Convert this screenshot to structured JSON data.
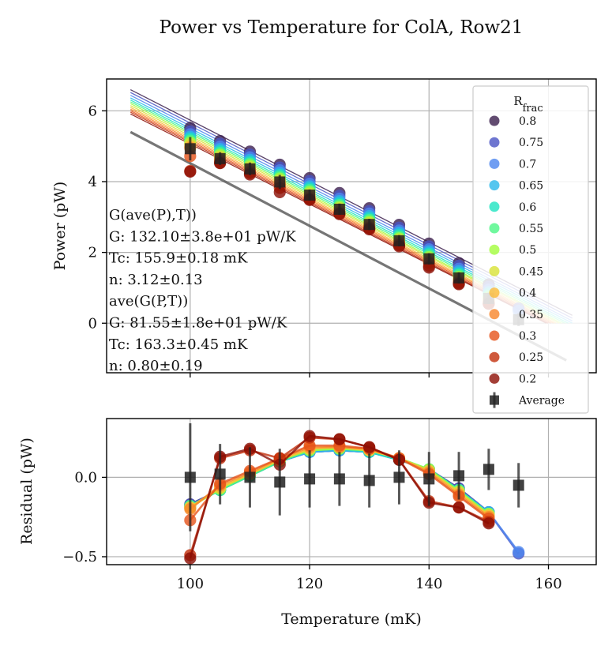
{
  "title": "Power vs Temperature for ColA, Row21",
  "chart_data": [
    {
      "type": "scatter",
      "panel": "top",
      "xlabel": "",
      "ylabel": "Power (pW)",
      "xlim": [
        86,
        168
      ],
      "ylim": [
        -1.4,
        6.9
      ],
      "yticks": [
        0,
        2,
        4,
        6
      ],
      "grid": true,
      "x": [
        100,
        105,
        110,
        115,
        120,
        125,
        130,
        135,
        140,
        145,
        150,
        155
      ],
      "legend": {
        "title": "R_frac",
        "placement": "top-right",
        "entries": [
          "0.8",
          "0.75",
          "0.7",
          "0.65",
          "0.6",
          "0.55",
          "0.5",
          "0.45",
          "0.4",
          "0.35",
          "0.3",
          "0.25",
          "0.2",
          "Average"
        ]
      },
      "series": [
        {
          "name": "0.8",
          "color": "#3b1f4e",
          "values": [
            5.52,
            5.15,
            4.85,
            4.48,
            4.1,
            3.68,
            3.25,
            2.78,
            2.25,
            1.7,
            1.1,
            null
          ]
        },
        {
          "name": "0.75",
          "color": "#4a54c4",
          "values": [
            5.42,
            5.07,
            4.77,
            4.4,
            4.02,
            3.6,
            3.17,
            2.7,
            2.17,
            1.62,
            1.03,
            0.42
          ]
        },
        {
          "name": "0.7",
          "color": "#4c86ef",
          "values": [
            5.34,
            4.99,
            4.69,
            4.32,
            3.94,
            3.52,
            3.1,
            2.62,
            2.09,
            1.54,
            0.95,
            0.35
          ]
        },
        {
          "name": "0.65",
          "color": "#2ab8eb",
          "values": [
            5.27,
            4.92,
            4.62,
            4.25,
            3.87,
            3.45,
            3.03,
            2.56,
            2.03,
            1.47,
            0.88,
            null
          ]
        },
        {
          "name": "0.6",
          "color": "#1ee3c0",
          "values": [
            5.22,
            4.86,
            4.56,
            4.19,
            3.81,
            3.39,
            2.97,
            2.5,
            1.97,
            1.41,
            0.82,
            null
          ]
        },
        {
          "name": "0.55",
          "color": "#4cf686",
          "values": [
            5.16,
            4.81,
            4.51,
            4.14,
            3.76,
            3.34,
            2.92,
            2.45,
            1.92,
            1.36,
            0.77,
            null
          ]
        },
        {
          "name": "0.5",
          "color": "#a3fc3c",
          "values": [
            5.11,
            4.76,
            4.46,
            4.09,
            3.71,
            3.29,
            2.87,
            2.4,
            1.87,
            1.31,
            0.72,
            null
          ]
        },
        {
          "name": "0.45",
          "color": "#d8e235",
          "values": [
            5.06,
            4.71,
            4.41,
            4.04,
            3.66,
            3.25,
            2.83,
            2.36,
            1.83,
            1.27,
            0.68,
            null
          ]
        },
        {
          "name": "0.4",
          "color": "#fbb938",
          "values": [
            5.0,
            4.66,
            4.36,
            3.99,
            3.61,
            3.2,
            2.78,
            2.31,
            1.78,
            1.23,
            0.64,
            null
          ]
        },
        {
          "name": "0.35",
          "color": "#f8862a",
          "values": [
            4.95,
            4.61,
            4.32,
            3.95,
            3.57,
            3.16,
            2.74,
            2.27,
            1.74,
            1.19,
            0.6,
            null
          ]
        },
        {
          "name": "0.3",
          "color": "#e6531a",
          "values": [
            4.72,
            4.57,
            4.28,
            3.9,
            3.52,
            3.12,
            2.7,
            2.23,
            1.7,
            1.15,
            0.56,
            null
          ]
        },
        {
          "name": "0.25",
          "color": "#c32f0b",
          "values": [
            4.3,
            4.53,
            4.24,
            3.82,
            3.5,
            3.1,
            2.68,
            2.2,
            1.62,
            1.12,
            0.55,
            null
          ]
        },
        {
          "name": "0.2",
          "color": "#8c0e04",
          "values": [
            4.28,
            4.52,
            4.2,
            3.7,
            3.48,
            3.08,
            2.65,
            2.17,
            1.57,
            1.1,
            0.55,
            null
          ]
        },
        {
          "name": "Average",
          "color": "#222222",
          "marker": "square",
          "values": [
            4.93,
            4.65,
            4.36,
            3.99,
            3.62,
            3.22,
            2.79,
            2.33,
            1.82,
            1.28,
            0.7,
            0.1
          ],
          "errors": [
            0.33,
            0.18,
            0.18,
            0.2,
            0.16,
            0.16,
            0.16,
            0.16,
            0.16,
            0.16,
            0.16,
            0.18
          ]
        }
      ],
      "annotations": [
        "G(ave(P),T))",
        "G: 132.10±3.8e+01 pW/K",
        "Tc:  155.9±0.18 mK",
        "n:  3.12±0.13",
        "ave(G(P,T))",
        "G: 81.55±1.8e+01 pW/K",
        "Tc:  163.3±0.45 mK",
        "n:  0.80±0.19"
      ]
    },
    {
      "type": "scatter",
      "panel": "bottom",
      "xlabel": "Temperature (mK)",
      "ylabel": "Residual (pW)",
      "xlim": [
        86,
        168
      ],
      "ylim": [
        -0.55,
        0.37
      ],
      "xticks": [
        100,
        120,
        140,
        160
      ],
      "yticks": [
        -0.5,
        0.0
      ],
      "ytick_labels": [
        "−0.5",
        "0.0"
      ],
      "xtick_labels": [
        "100",
        "120",
        "140",
        "160"
      ],
      "grid": true,
      "x": [
        100,
        105,
        110,
        115,
        120,
        125,
        130,
        135,
        140,
        145,
        150,
        155
      ],
      "series": [
        {
          "name": "0.8",
          "color": "#3b1f4e",
          "values": [
            -0.17,
            -0.08,
            0.01,
            0.1,
            0.16,
            0.17,
            0.16,
            0.11,
            0.05,
            -0.07,
            -0.22,
            null
          ]
        },
        {
          "name": "0.75",
          "color": "#4a54c4",
          "values": [
            -0.17,
            -0.08,
            0.01,
            0.1,
            0.16,
            0.17,
            0.16,
            0.11,
            0.05,
            -0.07,
            -0.22,
            -0.48
          ]
        },
        {
          "name": "0.7",
          "color": "#4c86ef",
          "values": [
            -0.18,
            -0.08,
            0.01,
            0.1,
            0.16,
            0.17,
            0.16,
            0.11,
            0.05,
            -0.08,
            -0.22,
            -0.47
          ]
        },
        {
          "name": "0.65",
          "color": "#2ab8eb",
          "values": [
            -0.18,
            -0.08,
            0.01,
            0.1,
            0.16,
            0.17,
            0.16,
            0.11,
            0.05,
            -0.08,
            -0.22,
            null
          ]
        },
        {
          "name": "0.6",
          "color": "#1ee3c0",
          "values": [
            -0.18,
            -0.08,
            0.01,
            0.1,
            0.17,
            0.18,
            0.16,
            0.11,
            0.05,
            -0.08,
            -0.23,
            null
          ]
        },
        {
          "name": "0.55",
          "color": "#4cf686",
          "values": [
            -0.18,
            -0.08,
            0.01,
            0.1,
            0.17,
            0.18,
            0.17,
            0.12,
            0.05,
            -0.08,
            -0.23,
            null
          ]
        },
        {
          "name": "0.5",
          "color": "#a3fc3c",
          "values": [
            -0.19,
            -0.07,
            0.02,
            0.11,
            0.17,
            0.18,
            0.17,
            0.12,
            0.05,
            -0.09,
            -0.23,
            null
          ]
        },
        {
          "name": "0.45",
          "color": "#d8e235",
          "values": [
            -0.19,
            -0.07,
            0.02,
            0.11,
            0.18,
            0.19,
            0.17,
            0.12,
            0.04,
            -0.09,
            -0.24,
            null
          ]
        },
        {
          "name": "0.4",
          "color": "#fbb938",
          "values": [
            -0.19,
            -0.06,
            0.02,
            0.11,
            0.18,
            0.19,
            0.17,
            0.12,
            0.04,
            -0.1,
            -0.24,
            null
          ]
        },
        {
          "name": "0.35",
          "color": "#f8862a",
          "values": [
            -0.2,
            -0.05,
            0.03,
            0.12,
            0.19,
            0.19,
            0.18,
            0.12,
            0.03,
            -0.11,
            -0.25,
            null
          ]
        },
        {
          "name": "0.3",
          "color": "#e6531a",
          "values": [
            -0.27,
            -0.04,
            0.04,
            0.12,
            0.2,
            0.2,
            0.18,
            0.12,
            0.02,
            -0.12,
            -0.26,
            null
          ]
        },
        {
          "name": "0.25",
          "color": "#c32f0b",
          "values": [
            -0.49,
            0.12,
            0.17,
            0.12,
            0.25,
            0.24,
            0.19,
            0.11,
            -0.15,
            -0.19,
            -0.28,
            null
          ]
        },
        {
          "name": "0.2",
          "color": "#8c0e04",
          "values": [
            -0.51,
            0.13,
            0.18,
            0.08,
            0.26,
            0.24,
            0.19,
            0.11,
            -0.16,
            -0.19,
            -0.29,
            null
          ]
        },
        {
          "name": "Average",
          "color": "#222222",
          "marker": "square",
          "values": [
            0.0,
            0.02,
            0.0,
            -0.03,
            -0.01,
            -0.01,
            -0.02,
            0.0,
            -0.01,
            0.01,
            0.05,
            -0.05
          ],
          "errors": [
            0.34,
            0.19,
            0.19,
            0.21,
            0.18,
            0.17,
            0.17,
            0.17,
            0.17,
            0.15,
            0.13,
            0.14
          ]
        }
      ]
    }
  ]
}
